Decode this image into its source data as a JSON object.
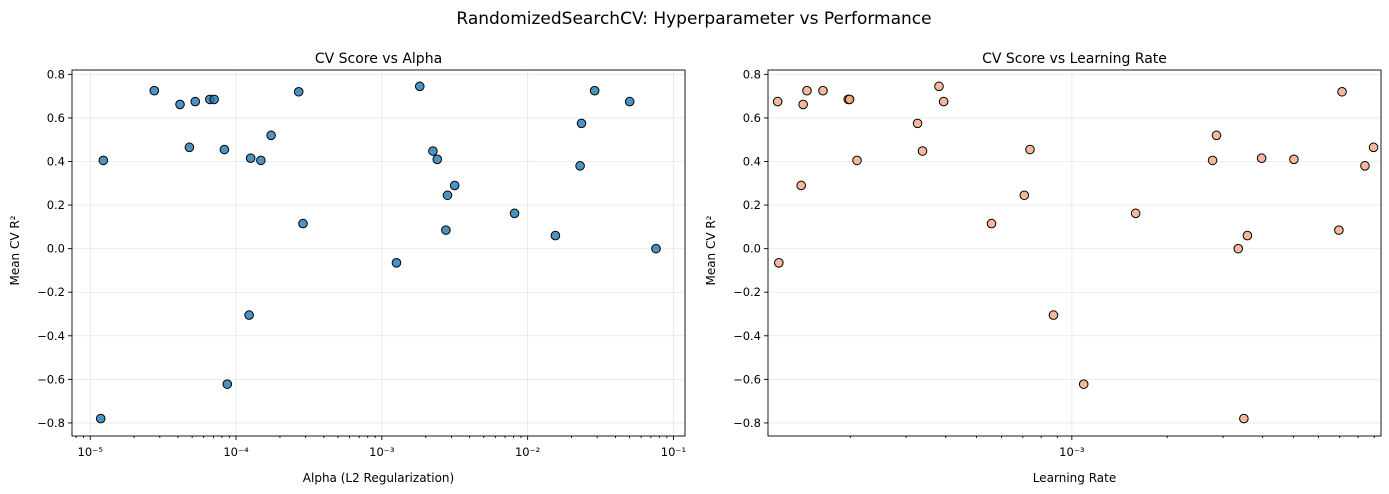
{
  "figure": {
    "suptitle": "RandomizedSearchCV: Hyperparameter vs Performance"
  },
  "chart_data": [
    {
      "type": "scatter",
      "title": "CV Score vs Alpha",
      "xlabel": "Alpha (L2 Regularization)",
      "ylabel": "Mean CV R²",
      "xscale": "log",
      "xlim": [
        7.5e-06,
        0.12
      ],
      "ylim": [
        -0.86,
        0.82
      ],
      "xticks": [
        1e-05,
        0.0001,
        0.001,
        0.01,
        0.1
      ],
      "xtick_labels": [
        "10⁻⁵",
        "10⁻⁴",
        "10⁻³",
        "10⁻²",
        "10⁻¹"
      ],
      "yticks": [
        -0.8,
        -0.6,
        -0.4,
        -0.2,
        0.0,
        0.2,
        0.4,
        0.6,
        0.8
      ],
      "ytick_labels": [
        "−0.8",
        "−0.6",
        "−0.4",
        "−0.2",
        "0.0",
        "0.2",
        "0.4",
        "0.6",
        "0.8"
      ],
      "grid": true,
      "marker_color": "#1f77b4",
      "points": [
        {
          "x": 1.18e-05,
          "y": -0.78
        },
        {
          "x": 1.23e-05,
          "y": 0.405
        },
        {
          "x": 2.75e-05,
          "y": 0.725
        },
        {
          "x": 4.13e-05,
          "y": 0.662
        },
        {
          "x": 4.79e-05,
          "y": 0.465
        },
        {
          "x": 5.25e-05,
          "y": 0.675
        },
        {
          "x": 6.61e-05,
          "y": 0.685
        },
        {
          "x": 7.08e-05,
          "y": 0.685
        },
        {
          "x": 8.32e-05,
          "y": 0.455
        },
        {
          "x": 8.71e-05,
          "y": -0.622
        },
        {
          "x": 0.000123,
          "y": -0.305
        },
        {
          "x": 0.000126,
          "y": 0.415
        },
        {
          "x": 0.000148,
          "y": 0.405
        },
        {
          "x": 0.000174,
          "y": 0.52
        },
        {
          "x": 0.000269,
          "y": 0.72
        },
        {
          "x": 0.000288,
          "y": 0.115
        },
        {
          "x": 0.00126,
          "y": -0.065
        },
        {
          "x": 0.00182,
          "y": 0.745
        },
        {
          "x": 0.00224,
          "y": 0.448
        },
        {
          "x": 0.0024,
          "y": 0.41
        },
        {
          "x": 0.00275,
          "y": 0.085
        },
        {
          "x": 0.00282,
          "y": 0.245
        },
        {
          "x": 0.00316,
          "y": 0.29
        },
        {
          "x": 0.00813,
          "y": 0.162
        },
        {
          "x": 0.0155,
          "y": 0.06
        },
        {
          "x": 0.0229,
          "y": 0.38
        },
        {
          "x": 0.0234,
          "y": 0.575
        },
        {
          "x": 0.0288,
          "y": 0.725
        },
        {
          "x": 0.0501,
          "y": 0.675
        },
        {
          "x": 0.0759,
          "y": 0.0
        }
      ]
    },
    {
      "type": "scatter",
      "title": "CV Score vs Learning Rate",
      "xlabel": "Learning Rate",
      "ylabel": "Mean CV R²",
      "xscale": "log",
      "xlim": [
        0.00011,
        0.00945
      ],
      "ylim": [
        -0.86,
        0.82
      ],
      "xticks": [
        0.001
      ],
      "xtick_labels": [
        "10⁻³"
      ],
      "yticks": [
        -0.8,
        -0.6,
        -0.4,
        -0.2,
        0.0,
        0.2,
        0.4,
        0.6,
        0.8
      ],
      "ytick_labels": [
        "−0.8",
        "−0.6",
        "−0.4",
        "−0.2",
        "0.0",
        "0.2",
        "0.4",
        "0.6",
        "0.8"
      ],
      "grid": true,
      "marker_color": "#f4a582",
      "points": [
        {
          "x": 0.000118,
          "y": 0.675
        },
        {
          "x": 0.000119,
          "y": -0.065
        },
        {
          "x": 0.00014,
          "y": 0.29
        },
        {
          "x": 0.000142,
          "y": 0.662
        },
        {
          "x": 0.000146,
          "y": 0.725
        },
        {
          "x": 0.000164,
          "y": 0.725
        },
        {
          "x": 0.000197,
          "y": 0.685
        },
        {
          "x": 0.000199,
          "y": 0.685
        },
        {
          "x": 0.00021,
          "y": 0.405
        },
        {
          "x": 0.000326,
          "y": 0.575
        },
        {
          "x": 0.000338,
          "y": 0.448
        },
        {
          "x": 0.000381,
          "y": 0.745
        },
        {
          "x": 0.000394,
          "y": 0.675
        },
        {
          "x": 0.000558,
          "y": 0.115
        },
        {
          "x": 0.000708,
          "y": 0.245
        },
        {
          "x": 0.000738,
          "y": 0.455
        },
        {
          "x": 0.000875,
          "y": -0.305
        },
        {
          "x": 0.00109,
          "y": -0.622
        },
        {
          "x": 0.00159,
          "y": 0.162
        },
        {
          "x": 0.00278,
          "y": 0.405
        },
        {
          "x": 0.00286,
          "y": 0.52
        },
        {
          "x": 0.00335,
          "y": 0.0
        },
        {
          "x": 0.00349,
          "y": -0.78
        },
        {
          "x": 0.00358,
          "y": 0.06
        },
        {
          "x": 0.00397,
          "y": 0.415
        },
        {
          "x": 0.00502,
          "y": 0.41
        },
        {
          "x": 0.00696,
          "y": 0.085
        },
        {
          "x": 0.00712,
          "y": 0.72
        },
        {
          "x": 0.00841,
          "y": 0.38
        },
        {
          "x": 0.00895,
          "y": 0.465
        }
      ]
    }
  ]
}
